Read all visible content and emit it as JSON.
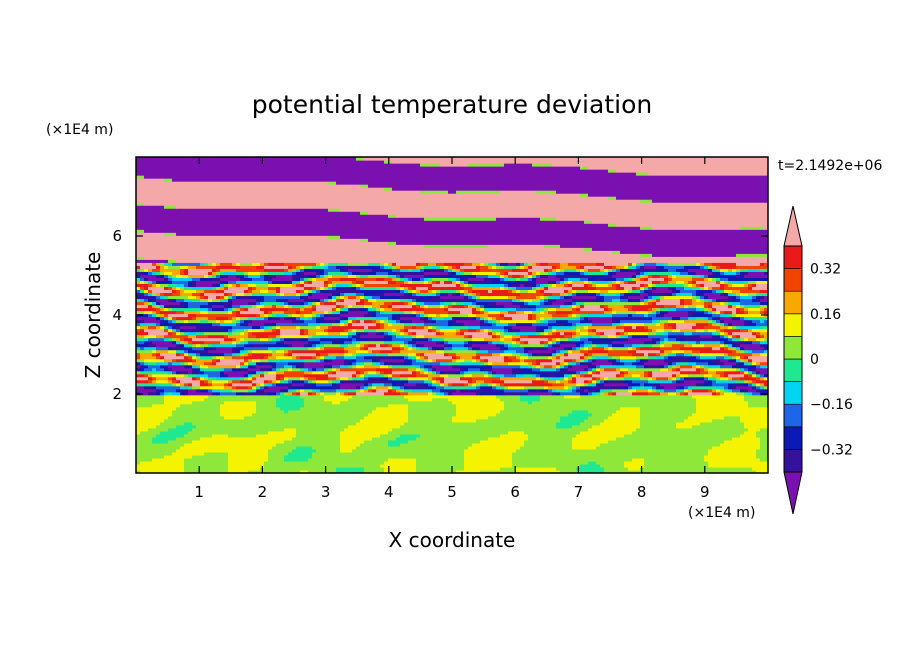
{
  "chart_data": {
    "type": "heatmap",
    "title": "potential temperature deviation",
    "xlabel": "X coordinate",
    "ylabel": "Z coordinate",
    "x_unit": "(×1E4 m)",
    "y_unit": "(×1E4 m)",
    "time_label": "t=2.1492e+06",
    "xlim": [
      0,
      10
    ],
    "ylim": [
      0,
      8
    ],
    "x_ticks": [
      1,
      2,
      3,
      4,
      5,
      6,
      7,
      8,
      9
    ],
    "x_tick_labels": [
      "1",
      "2",
      "3",
      "4",
      "5",
      "6",
      "7",
      "8",
      "9"
    ],
    "y_ticks": [
      2,
      4,
      6
    ],
    "y_tick_labels": [
      "2",
      "4",
      "6"
    ],
    "colorbar": {
      "levels": [
        -0.4,
        -0.32,
        -0.24,
        -0.16,
        -0.08,
        0,
        0.08,
        0.16,
        0.24,
        0.32,
        0.4
      ],
      "colors": [
        "#7b10b0",
        "#35129c",
        "#0b1ab4",
        "#1e66e8",
        "#00d4f0",
        "#1ee890",
        "#8ee83a",
        "#f4f400",
        "#f8a800",
        "#f04400",
        "#e81a1a",
        "#f4a8a8"
      ],
      "tick_values": [
        -0.32,
        -0.16,
        0,
        0.16,
        0.32
      ],
      "tick_labels": [
        "−0.32",
        "−0.16",
        "0",
        "0.16",
        "0.32"
      ],
      "extend": "both"
    }
  }
}
